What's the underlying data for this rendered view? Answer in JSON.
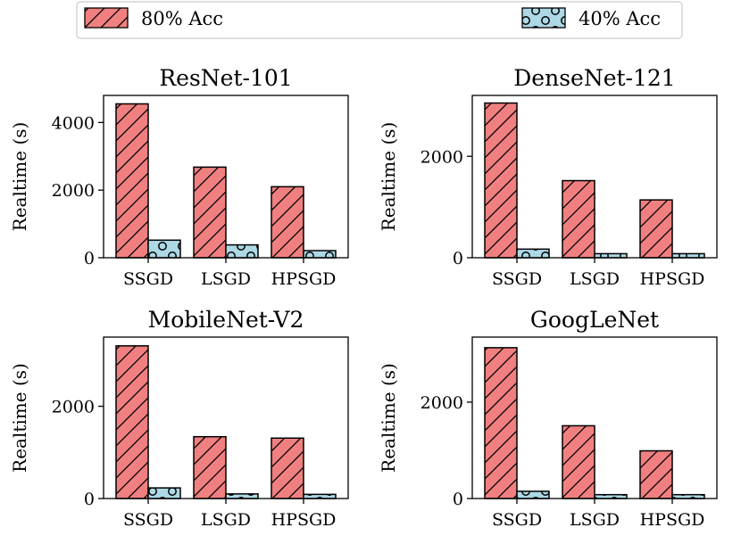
{
  "legend": {
    "items": [
      {
        "label": "80% Acc",
        "color": "#f08080",
        "pattern": "hatch-diagonal"
      },
      {
        "label": "40% Acc",
        "color": "#add8e6",
        "pattern": "circles"
      }
    ]
  },
  "chart_data": [
    {
      "type": "bar",
      "title": "ResNet-101",
      "ylabel": "Realtime (s)",
      "categories": [
        "SSGD",
        "LSGD",
        "HPSGD"
      ],
      "ylim": [
        0,
        4800
      ],
      "yticks": [
        0,
        2000,
        4000
      ],
      "series": [
        {
          "name": "80% Acc",
          "values": [
            4550,
            2680,
            2100
          ]
        },
        {
          "name": "40% Acc",
          "values": [
            520,
            380,
            210
          ]
        }
      ]
    },
    {
      "type": "bar",
      "title": "DenseNet-121",
      "ylabel": "Realtime (s)",
      "categories": [
        "SSGD",
        "LSGD",
        "HPSGD"
      ],
      "ylim": [
        0,
        3200
      ],
      "yticks": [
        0,
        2000
      ],
      "series": [
        {
          "name": "80% Acc",
          "values": [
            3050,
            1520,
            1140
          ]
        },
        {
          "name": "40% Acc",
          "values": [
            170,
            80,
            80
          ]
        }
      ]
    },
    {
      "type": "bar",
      "title": "MobileNet-V2",
      "ylabel": "Realtime (s)",
      "categories": [
        "SSGD",
        "LSGD",
        "HPSGD"
      ],
      "ylim": [
        0,
        3500
      ],
      "yticks": [
        0,
        2000
      ],
      "series": [
        {
          "name": "80% Acc",
          "values": [
            3310,
            1340,
            1310
          ]
        },
        {
          "name": "40% Acc",
          "values": [
            230,
            100,
            90
          ]
        }
      ]
    },
    {
      "type": "bar",
      "title": "GoogLeNet",
      "ylabel": "Realtime (s)",
      "categories": [
        "SSGD",
        "LSGD",
        "HPSGD"
      ],
      "ylim": [
        0,
        3350
      ],
      "yticks": [
        0,
        2000
      ],
      "series": [
        {
          "name": "80% Acc",
          "values": [
            3130,
            1510,
            990
          ]
        },
        {
          "name": "40% Acc",
          "values": [
            150,
            80,
            80
          ]
        }
      ]
    }
  ]
}
